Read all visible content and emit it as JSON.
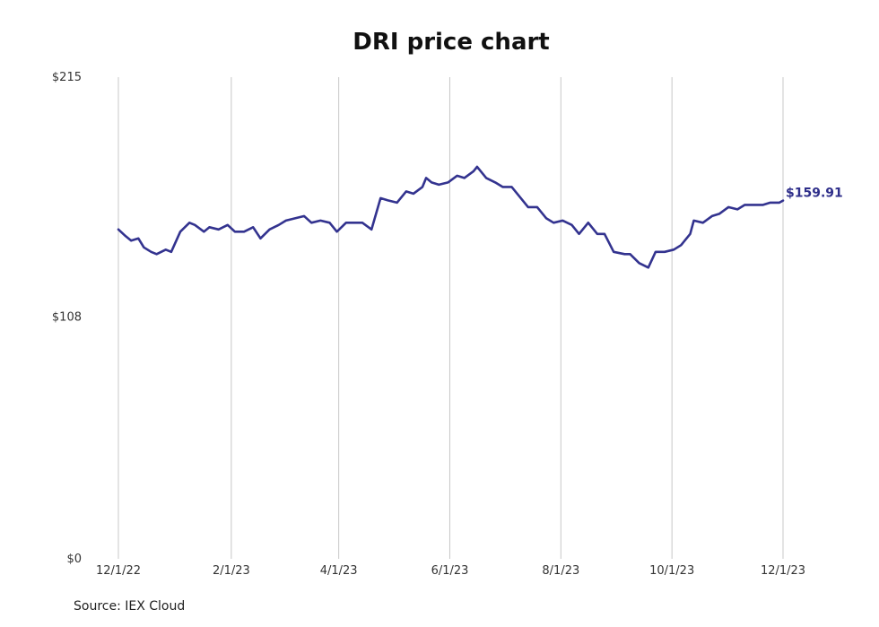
{
  "chart_data": {
    "type": "line",
    "title": "DRI price chart",
    "source": "Source: IEX Cloud",
    "ylim": [
      0,
      215
    ],
    "y_ticks": [
      {
        "value": 0,
        "label": "$0"
      },
      {
        "value": 108,
        "label": "$108"
      },
      {
        "value": 215,
        "label": "$215"
      }
    ],
    "x_ticks": [
      "12/1/22",
      "2/1/23",
      "4/1/23",
      "6/1/23",
      "8/1/23",
      "10/1/23",
      "12/1/23"
    ],
    "grid": "vertical",
    "line_color": "#33338f",
    "last_value_label": "$159.91",
    "series": [
      {
        "x": [
          "2022-12-01",
          "2022-12-05",
          "2022-12-08",
          "2022-12-12",
          "2022-12-15",
          "2022-12-19",
          "2022-12-22",
          "2022-12-27",
          "2022-12-30",
          "2023-01-04",
          "2023-01-09",
          "2023-01-12",
          "2023-01-17",
          "2023-01-20",
          "2023-01-25",
          "2023-01-30",
          "2023-02-03",
          "2023-02-08",
          "2023-02-13",
          "2023-02-17",
          "2023-02-22",
          "2023-02-27",
          "2023-03-03",
          "2023-03-08",
          "2023-03-13",
          "2023-03-17",
          "2023-03-22",
          "2023-03-27",
          "2023-03-31",
          "2023-04-05",
          "2023-04-10",
          "2023-04-14",
          "2023-04-19",
          "2023-04-24",
          "2023-04-28",
          "2023-05-03",
          "2023-05-08",
          "2023-05-12",
          "2023-05-17",
          "2023-05-19",
          "2023-05-22",
          "2023-05-26",
          "2023-05-31",
          "2023-06-05",
          "2023-06-09",
          "2023-06-14",
          "2023-06-16",
          "2023-06-21",
          "2023-06-26",
          "2023-06-30",
          "2023-07-05",
          "2023-07-10",
          "2023-07-14",
          "2023-07-19",
          "2023-07-24",
          "2023-07-28",
          "2023-08-02",
          "2023-08-07",
          "2023-08-11",
          "2023-08-16",
          "2023-08-21",
          "2023-08-25",
          "2023-08-30",
          "2023-09-05",
          "2023-09-08",
          "2023-09-13",
          "2023-09-18",
          "2023-09-22",
          "2023-09-27",
          "2023-10-02",
          "2023-10-06",
          "2023-10-11",
          "2023-10-13",
          "2023-10-18",
          "2023-10-23",
          "2023-10-27",
          "2023-11-01",
          "2023-11-06",
          "2023-11-10",
          "2023-11-15",
          "2023-11-20",
          "2023-11-24",
          "2023-11-29",
          "2023-12-01"
        ],
        "values": [
          147,
          144,
          142,
          143,
          139,
          137,
          136,
          138,
          137,
          146,
          150,
          149,
          146,
          148,
          147,
          149,
          146,
          146,
          148,
          143,
          147,
          149,
          151,
          152,
          153,
          150,
          151,
          150,
          146,
          150,
          150,
          150,
          147,
          161,
          160,
          159,
          164,
          163,
          166,
          170,
          168,
          167,
          168,
          171,
          170,
          173,
          175,
          170,
          168,
          166,
          166,
          161,
          157,
          157,
          152,
          150,
          151,
          149,
          145,
          150,
          145,
          145,
          137,
          136,
          136,
          132,
          130,
          137,
          137,
          138,
          140,
          145,
          151,
          150,
          153,
          154,
          157,
          156,
          158,
          158,
          158,
          159,
          159,
          159.91
        ]
      }
    ]
  }
}
